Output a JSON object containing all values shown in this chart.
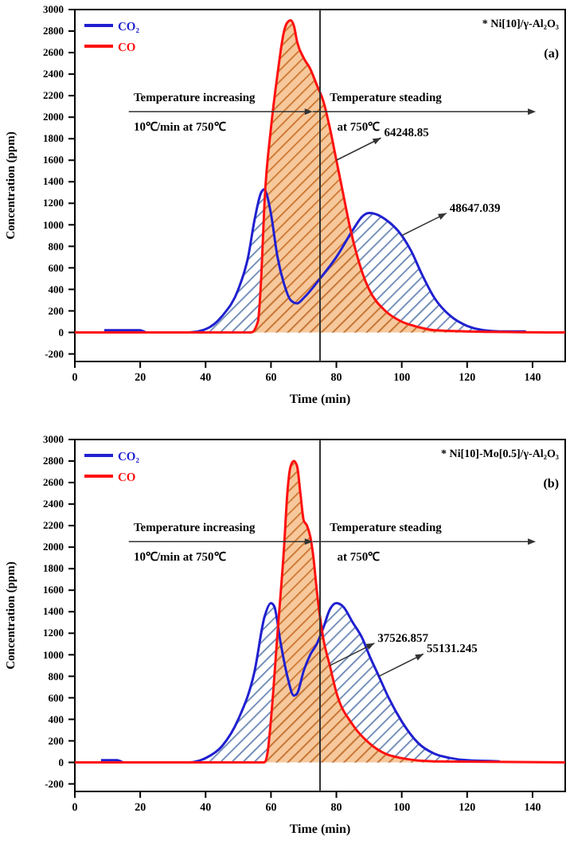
{
  "chart_data": [
    {
      "type": "area",
      "title": "* Ni[10]/γ-Al₂O₃",
      "xlabel": "Time (min)",
      "ylabel": "Concentration (ppm)",
      "xlim": [
        0,
        150
      ],
      "xticks": [
        0,
        20,
        40,
        60,
        80,
        100,
        120,
        140
      ],
      "ylim": [
        -270,
        3000
      ],
      "yticks": [
        -200,
        0,
        200,
        400,
        600,
        800,
        1000,
        1200,
        1400,
        1600,
        1800,
        2000,
        2200,
        2400,
        2600,
        2800,
        3000
      ],
      "legend": "top left",
      "grid": false,
      "ref_lines": [
        {
          "axis": "x",
          "value": 75
        }
      ],
      "annotations": [
        "Temperature increasing",
        "10℃/min at 750℃",
        "Temperature steading",
        "at 750℃",
        "(a)",
        {
          "text": "64248.85",
          "x": 80,
          "y": 1600
        },
        {
          "text": "48647.039",
          "x": 100,
          "y": 900
        }
      ],
      "series": [
        {
          "name": "CO₂",
          "color": "#2020d0",
          "x": [
            9,
            20,
            22,
            35,
            40,
            45,
            50,
            53,
            55,
            57,
            58,
            59,
            60,
            62,
            64,
            66,
            68,
            70,
            75,
            80,
            85,
            88,
            90,
            92,
            95,
            100,
            103,
            106,
            110,
            115,
            120,
            125,
            130,
            138
          ],
          "values": [
            20,
            20,
            0,
            0,
            30,
            150,
            400,
            700,
            1050,
            1300,
            1330,
            1250,
            1100,
            700,
            450,
            300,
            270,
            320,
            500,
            700,
            950,
            1080,
            1110,
            1100,
            1050,
            900,
            750,
            550,
            320,
            150,
            60,
            20,
            10,
            10
          ]
        },
        {
          "name": "CO",
          "color": "#ff1010",
          "x": [
            0,
            54,
            56,
            57,
            58,
            60,
            62,
            64,
            65,
            66,
            67,
            68,
            70,
            72,
            74,
            76,
            78,
            80,
            82,
            84,
            86,
            88,
            90,
            95,
            100,
            105,
            110,
            120,
            150
          ],
          "values": [
            0,
            0,
            100,
            500,
            1200,
            1900,
            2400,
            2800,
            2880,
            2900,
            2850,
            2700,
            2550,
            2450,
            2300,
            2150,
            1900,
            1600,
            1300,
            1000,
            750,
            550,
            400,
            200,
            100,
            50,
            20,
            10,
            0
          ]
        }
      ]
    },
    {
      "type": "area",
      "title": "* Ni[10]-Mo[0.5]/γ-Al₂O₃",
      "xlabel": "Time (min)",
      "ylabel": "Concentration (ppm)",
      "xlim": [
        0,
        150
      ],
      "xticks": [
        0,
        20,
        40,
        60,
        80,
        100,
        120,
        140
      ],
      "ylim": [
        -270,
        3000
      ],
      "yticks": [
        -200,
        0,
        200,
        400,
        600,
        800,
        1000,
        1200,
        1400,
        1600,
        1800,
        2000,
        2200,
        2400,
        2600,
        2800,
        3000
      ],
      "legend": "top left",
      "grid": false,
      "ref_lines": [
        {
          "axis": "x",
          "value": 75
        }
      ],
      "annotations": [
        "Temperature increasing",
        "10℃/min at 750℃",
        "Temperature steading",
        "at 750℃",
        "(b)",
        {
          "text": "37526.857",
          "x": 78,
          "y": 900
        },
        {
          "text": "55131.245",
          "x": 93,
          "y": 800
        }
      ],
      "series": [
        {
          "name": "CO₂",
          "color": "#2020d0",
          "x": [
            8,
            13,
            15,
            35,
            40,
            45,
            50,
            55,
            58,
            60,
            61,
            63,
            65,
            67,
            68,
            70,
            72,
            74,
            76,
            78,
            80,
            82,
            85,
            88,
            90,
            93,
            96,
            100,
            105,
            110,
            115,
            120,
            130
          ],
          "values": [
            20,
            20,
            0,
            0,
            40,
            150,
            400,
            850,
            1350,
            1480,
            1450,
            1100,
            800,
            620,
            640,
            850,
            1000,
            1100,
            1250,
            1420,
            1480,
            1450,
            1300,
            1150,
            1000,
            800,
            600,
            380,
            180,
            80,
            40,
            20,
            10
          ]
        },
        {
          "name": "CO",
          "color": "#ff1010",
          "x": [
            0,
            58,
            59,
            60,
            62,
            64,
            65,
            66,
            67,
            68,
            69,
            70,
            71,
            72,
            73,
            74,
            75,
            76,
            78,
            80,
            85,
            90,
            95,
            100,
            110,
            150
          ],
          "values": [
            0,
            0,
            100,
            400,
            1200,
            2000,
            2500,
            2750,
            2800,
            2750,
            2500,
            2250,
            2200,
            2100,
            1900,
            1600,
            1350,
            1150,
            900,
            650,
            350,
            180,
            80,
            40,
            10,
            0
          ]
        }
      ]
    }
  ]
}
